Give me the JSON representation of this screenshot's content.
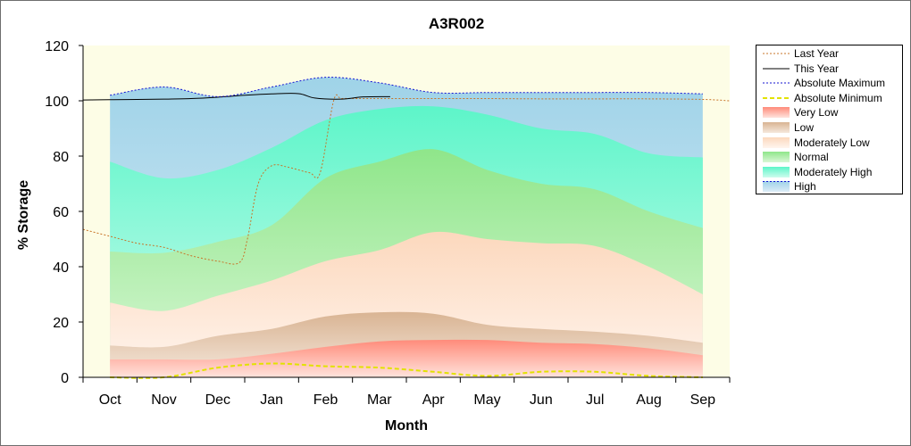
{
  "chart_data": {
    "type": "area",
    "title": "A3R002",
    "xlabel": "Month",
    "ylabel": "% Storage",
    "ylim": [
      0,
      120
    ],
    "xlim": [
      0,
      12
    ],
    "yticks": [
      0,
      20,
      40,
      60,
      80,
      100,
      120
    ],
    "categories": [
      "Oct",
      "Nov",
      "Dec",
      "Jan",
      "Feb",
      "Mar",
      "Apr",
      "May",
      "Jun",
      "Jul",
      "Aug",
      "Sep"
    ],
    "x": [
      0.5,
      1.5,
      2.5,
      3.5,
      4.5,
      5.5,
      6.5,
      7.5,
      8.5,
      9.5,
      10.5,
      11.5
    ],
    "bands": [
      {
        "name": "Very Low",
        "upper": [
          6.5,
          6.5,
          6.5,
          8.5,
          11,
          13,
          13.5,
          13.5,
          12.5,
          12,
          10.5,
          8
        ],
        "color_top": "#ff8b7a",
        "color_bottom": "#ffe3dc"
      },
      {
        "name": "Low",
        "upper": [
          11.5,
          11,
          15,
          17.5,
          22,
          23.5,
          23,
          19,
          17.5,
          16.5,
          15,
          12.5
        ],
        "color_top": "#d9b493",
        "color_bottom": "#f5e8dc"
      },
      {
        "name": "Moderately Low",
        "upper": [
          27,
          24,
          29.5,
          35,
          42,
          46,
          52.5,
          50,
          48.5,
          47.5,
          40,
          30
        ],
        "color_top": "#fcd8bd",
        "color_bottom": "#fff5ee"
      },
      {
        "name": "Normal",
        "upper": [
          45.5,
          45,
          49,
          55,
          72,
          78,
          82.5,
          75,
          70,
          68,
          60,
          54
        ],
        "color_top": "#8fe68a",
        "color_bottom": "#d9f7d6"
      },
      {
        "name": "Moderately High",
        "upper": [
          78,
          72,
          75,
          83,
          93,
          97,
          98,
          95,
          90,
          88,
          81,
          79.5
        ],
        "color_top": "#5df5c9",
        "color_bottom": "#cdfcee"
      },
      {
        "name": "High",
        "upper": [
          102,
          105,
          101.5,
          105,
          108.5,
          106.5,
          103,
          103,
          103,
          103,
          103,
          102.5
        ],
        "color_top": "#9fd3e8",
        "color_bottom": "#dcecf7"
      }
    ],
    "series": [
      {
        "name": "Last Year",
        "style": "dotted",
        "color": "#c8752a",
        "x": [
          0.0,
          0.5,
          1.0,
          1.5,
          2.0,
          2.5,
          2.9,
          3.05,
          3.25,
          3.5,
          3.8,
          4.2,
          4.4,
          4.65,
          4.8,
          5.2,
          6.5,
          7.5,
          8.5,
          9.5,
          10.5,
          11.5,
          12.0
        ],
        "y": [
          53.5,
          51,
          48.5,
          47,
          44,
          42,
          41.5,
          50,
          70,
          76.5,
          76,
          74,
          74,
          100,
          100.8,
          100.8,
          100.8,
          100.8,
          100.7,
          100.7,
          100.7,
          100.5,
          100
        ]
      },
      {
        "name": "This Year",
        "style": "solid",
        "color": "#000000",
        "x": [
          0.0,
          0.5,
          1.0,
          1.5,
          2.0,
          2.5,
          3.0,
          3.5,
          4.0,
          4.3,
          4.8,
          5.2,
          5.7
        ],
        "y": [
          100.3,
          100.4,
          100.5,
          100.6,
          100.8,
          101.3,
          102,
          102.5,
          102.6,
          101,
          100.6,
          101.4,
          101.5
        ]
      },
      {
        "name": "Absolute Maximum",
        "style": "dotted",
        "color": "#1414d2",
        "x": [
          0.5,
          1.5,
          2.5,
          3.5,
          4.5,
          5.5,
          6.5,
          7.5,
          8.5,
          9.5,
          10.5,
          11.5
        ],
        "y": [
          102,
          105,
          101.5,
          105,
          108.5,
          106.5,
          103,
          103,
          103,
          103,
          103,
          102.5
        ]
      },
      {
        "name": "Absolute Minimum",
        "style": "dashed",
        "color": "#e2e200",
        "x": [
          0.5,
          1.5,
          2.5,
          3.5,
          4.5,
          5.5,
          6.5,
          7.5,
          8.5,
          9.5,
          10.5,
          11.5
        ],
        "y": [
          0,
          0,
          3.5,
          5,
          4,
          3.5,
          2,
          0.5,
          2,
          2,
          0.5,
          0
        ]
      }
    ],
    "legend": [
      {
        "label": "Last Year",
        "kind": "line",
        "style": "dotted",
        "color": "#c8752a"
      },
      {
        "label": "This Year",
        "kind": "line",
        "style": "solid",
        "color": "#000000"
      },
      {
        "label": "Absolute Maximum",
        "kind": "line",
        "style": "dotted",
        "color": "#1414d2"
      },
      {
        "label": "Absolute Minimum",
        "kind": "line",
        "style": "dashed",
        "color": "#e2e200"
      },
      {
        "label": "Very Low",
        "kind": "area",
        "color_top": "#ff8b7a",
        "color_bottom": "#ffe3dc"
      },
      {
        "label": "Low",
        "kind": "area",
        "color_top": "#d9b493",
        "color_bottom": "#f5e8dc"
      },
      {
        "label": "Moderately Low",
        "kind": "area",
        "color_top": "#fcd8bd",
        "color_bottom": "#fff5ee"
      },
      {
        "label": "Normal",
        "kind": "area",
        "color_top": "#8fe68a",
        "color_bottom": "#d9f7d6"
      },
      {
        "label": "Moderately High",
        "kind": "area",
        "color_top": "#5df5c9",
        "color_bottom": "#cdfcee"
      },
      {
        "label": "High",
        "kind": "area",
        "color_top": "#9fd3e8",
        "color_bottom": "#dcecf7",
        "style": "dotted",
        "color": "#1414d2"
      }
    ],
    "plot_background": "#fdfde6",
    "grid": false,
    "legend_position": "top-right"
  }
}
